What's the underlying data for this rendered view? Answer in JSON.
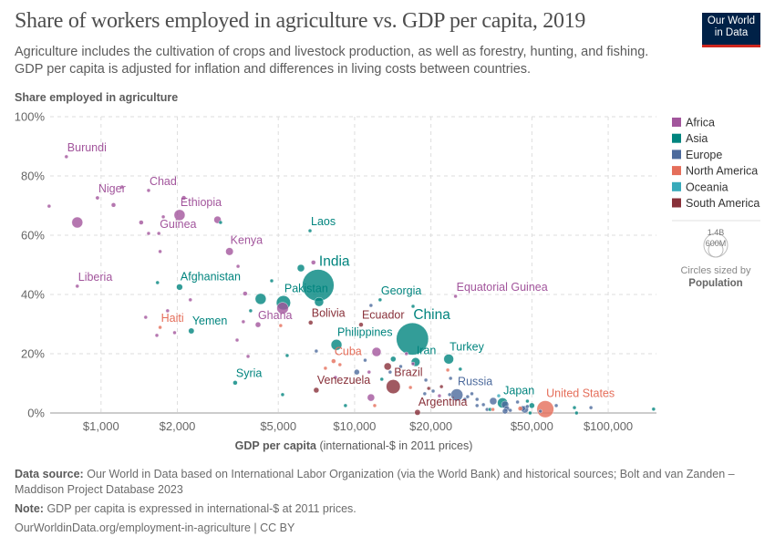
{
  "header": {
    "title": "Share of workers employed in agriculture vs. GDP per capita, 2019",
    "subtitle_line1": "Agriculture includes the cultivation of crops and livestock production, as well as forestry, hunting, and fishing.",
    "subtitle_line2": "GDP per capita is adjusted for inflation and differences in living costs between countries.",
    "logo_line1": "Our World",
    "logo_line2": "in Data"
  },
  "legend": {
    "size_big": "1.4B",
    "size_small": "600M",
    "sized_by_label": "Circles sized by",
    "sized_by_value": "Population"
  },
  "footer": {
    "source_label": "Data source:",
    "source_text": "Our World in Data based on International Labor Organization (via the World Bank) and historical sources; Bolt and van Zanden – Maddison Project Database 2023",
    "note_label": "Note:",
    "note_text": "GDP per capita is expressed in international-$ at 2011 prices.",
    "url": "OurWorldinData.org/employment-in-agriculture | CC BY"
  },
  "chart_data": {
    "type": "scatter",
    "title": "Share of workers employed in agriculture vs. GDP per capita, 2019",
    "xlabel_bold": "GDP per capita",
    "xlabel_rest": " (international-$ in 2011 prices)",
    "ylabel": "Share employed in agriculture",
    "x_scale": "log",
    "xlim": [
      630,
      155000
    ],
    "ylim": [
      0,
      100
    ],
    "x_ticks": [
      1000,
      2000,
      5000,
      10000,
      20000,
      50000,
      100000
    ],
    "x_tick_labels": [
      "$1,000",
      "$2,000",
      "$5,000",
      "$10,000",
      "$20,000",
      "$50,000",
      "$100,000"
    ],
    "y_ticks": [
      0,
      20,
      40,
      60,
      80,
      100
    ],
    "y_tick_labels": [
      "0%",
      "20%",
      "40%",
      "60%",
      "80%",
      "100%"
    ],
    "grid": true,
    "legend_placement": "right",
    "size_variable": "Population",
    "regions": [
      {
        "name": "Africa",
        "color": "#a2559c"
      },
      {
        "name": "Asia",
        "color": "#00847e"
      },
      {
        "name": "Europe",
        "color": "#4c6a9c"
      },
      {
        "name": "North America",
        "color": "#e56e5a"
      },
      {
        "name": "Oceania",
        "color": "#38aaba"
      },
      {
        "name": "South America",
        "color": "#883039"
      }
    ],
    "points": [
      {
        "label": "Burundi",
        "gdp": 730,
        "share": 86.5,
        "region": "Africa",
        "pop": 1.3
      },
      {
        "label": "Niger",
        "gdp": 968,
        "share": 72.6,
        "region": "Africa",
        "pop": 2
      },
      {
        "label": "Chad",
        "gdp": 1540,
        "share": 75.1,
        "region": "Africa",
        "pop": 1.3
      },
      {
        "label": "Ethiopia",
        "gdp": 2040,
        "share": 66.8,
        "region": "Africa",
        "pop": 112
      },
      {
        "label": "Guinea",
        "gdp": 1690,
        "share": 60.6,
        "region": "Africa",
        "pop": 1.3
      },
      {
        "label": "Kenya",
        "gdp": 3210,
        "share": 54.5,
        "region": "Africa",
        "pop": 40
      },
      {
        "label": "Laos",
        "gdp": 6670,
        "share": 61.5,
        "region": "Asia",
        "pop": 1.3
      },
      {
        "label": "India",
        "gdp": 7180,
        "share": 43.1,
        "region": "Asia",
        "pop": 1380
      },
      {
        "label": "Pakistan",
        "gdp": 5240,
        "share": 37.2,
        "region": "Asia",
        "pop": 217
      },
      {
        "label": "Afghanistan",
        "gdp": 2040,
        "share": 42.5,
        "region": "Asia",
        "pop": 20
      },
      {
        "label": "Liberia",
        "gdp": 806,
        "share": 42.8,
        "region": "Africa",
        "pop": 1.3
      },
      {
        "label": "Ghana",
        "gdp": 5200,
        "share": 35.4,
        "region": "Africa",
        "pop": 130
      },
      {
        "label": "Haiti",
        "gdp": 1710,
        "share": 28.9,
        "region": "North America",
        "pop": 1.3
      },
      {
        "label": "Yemen",
        "gdp": 2270,
        "share": 27.7,
        "region": "Asia",
        "pop": 15
      },
      {
        "label": "Syria",
        "gdp": 3380,
        "share": 10.2,
        "region": "Asia",
        "pop": 5
      },
      {
        "label": "Venezuela",
        "gdp": 7060,
        "share": 7.7,
        "region": "South America",
        "pop": 12
      },
      {
        "label": "Cuba",
        "gdp": 8260,
        "share": 17.5,
        "region": "North America",
        "pop": 5
      },
      {
        "label": "Philippines",
        "gdp": 8480,
        "share": 23.0,
        "region": "Asia",
        "pop": 108
      },
      {
        "label": "Bolivia",
        "gdp": 6710,
        "share": 30.5,
        "region": "South America",
        "pop": 5
      },
      {
        "label": "Ecuador",
        "gdp": 10600,
        "share": 29.8,
        "region": "South America",
        "pop": 5
      },
      {
        "label": "China",
        "gdp": 16900,
        "share": 25.0,
        "region": "Asia",
        "pop": 1420
      },
      {
        "label": "Iran",
        "gdp": 17400,
        "share": 17.2,
        "region": "Asia",
        "pop": 60
      },
      {
        "label": "Turkey",
        "gdp": 23500,
        "share": 18.2,
        "region": "Asia",
        "pop": 83
      },
      {
        "label": "Georgia",
        "gdp": 12600,
        "share": 38.2,
        "region": "Asia",
        "pop": 1.3
      },
      {
        "label": "Equatorial Guinea",
        "gdp": 25000,
        "share": 39.4,
        "region": "Africa",
        "pop": 1.3
      },
      {
        "label": "Brazil",
        "gdp": 14200,
        "share": 8.9,
        "region": "South America",
        "pop": 211
      },
      {
        "label": "Russia",
        "gdp": 25300,
        "share": 6.1,
        "region": "Europe",
        "pop": 145
      },
      {
        "label": "Argentina",
        "gdp": 17700,
        "share": 0.2,
        "region": "South America",
        "pop": 15
      },
      {
        "label": "Japan",
        "gdp": 38300,
        "share": 3.4,
        "region": "Asia",
        "pop": 90
      },
      {
        "label": "United States",
        "gdp": 56500,
        "share": 1.3,
        "region": "North America",
        "pop": 330
      },
      {
        "gdp": 624,
        "share": 69.8,
        "region": "Africa",
        "pop": 1.3
      },
      {
        "gdp": 806,
        "share": 64.3,
        "region": "Africa",
        "pop": 110
      },
      {
        "gdp": 1210,
        "share": 76.3,
        "region": "Africa",
        "pop": 1.3
      },
      {
        "gdp": 1120,
        "share": 70.2,
        "region": "Africa",
        "pop": 5
      },
      {
        "gdp": 1440,
        "share": 64.3,
        "region": "Africa",
        "pop": 5
      },
      {
        "gdp": 1760,
        "share": 66.2,
        "region": "Africa",
        "pop": 1.3
      },
      {
        "gdp": 1540,
        "share": 60.6,
        "region": "Africa",
        "pop": 1.3
      },
      {
        "gdp": 2120,
        "share": 72.6,
        "region": "Africa",
        "pop": 5
      },
      {
        "gdp": 2880,
        "share": 65.2,
        "region": "Africa",
        "pop": 34
      },
      {
        "gdp": 2960,
        "share": 64.3,
        "region": "Asia",
        "pop": 1.3
      },
      {
        "gdp": 1710,
        "share": 54.5,
        "region": "Africa",
        "pop": 1.3
      },
      {
        "gdp": 3470,
        "share": 49.5,
        "region": "Africa",
        "pop": 1.3
      },
      {
        "gdp": 1670,
        "share": 44.0,
        "region": "Asia",
        "pop": 1.3
      },
      {
        "gdp": 2250,
        "share": 38.2,
        "region": "Africa",
        "pop": 1.3
      },
      {
        "gdp": 3700,
        "share": 40.3,
        "region": "Africa",
        "pop": 5
      },
      {
        "gdp": 4710,
        "share": 44.6,
        "region": "Asia",
        "pop": 1.3
      },
      {
        "gdp": 6140,
        "share": 48.9,
        "region": "Asia",
        "pop": 34
      },
      {
        "gdp": 6880,
        "share": 50.8,
        "region": "Africa",
        "pop": 5
      },
      {
        "gdp": 4260,
        "share": 38.5,
        "region": "Asia",
        "pop": 110
      },
      {
        "gdp": 7240,
        "share": 37.5,
        "region": "Asia",
        "pop": 67
      },
      {
        "gdp": 3890,
        "share": 34.5,
        "region": "Asia",
        "pop": 1.3
      },
      {
        "gdp": 11600,
        "share": 36.3,
        "region": "Europe",
        "pop": 1.3
      },
      {
        "gdp": 1830,
        "share": 34.5,
        "region": "Africa",
        "pop": 1.3
      },
      {
        "gdp": 1500,
        "share": 32.3,
        "region": "Africa",
        "pop": 1.3
      },
      {
        "gdp": 1660,
        "share": 26.2,
        "region": "Africa",
        "pop": 1.3
      },
      {
        "gdp": 1950,
        "share": 27.1,
        "region": "Africa",
        "pop": 1.3
      },
      {
        "gdp": 3640,
        "share": 30.8,
        "region": "Africa",
        "pop": 1.3
      },
      {
        "gdp": 4160,
        "share": 29.8,
        "region": "Africa",
        "pop": 12
      },
      {
        "gdp": 5110,
        "share": 29.5,
        "region": "North America",
        "pop": 1.3
      },
      {
        "gdp": 3440,
        "share": 24.6,
        "region": "Africa",
        "pop": 1.3
      },
      {
        "gdp": 3800,
        "share": 19.1,
        "region": "Africa",
        "pop": 1.3
      },
      {
        "gdp": 5420,
        "share": 19.4,
        "region": "Asia",
        "pop": 1.3
      },
      {
        "gdp": 5200,
        "share": 6.2,
        "region": "Asia",
        "pop": 1.3
      },
      {
        "gdp": 7060,
        "share": 20.9,
        "region": "Europe",
        "pop": 1.3
      },
      {
        "gdp": 7670,
        "share": 15.1,
        "region": "North America",
        "pop": 1.3
      },
      {
        "gdp": 8750,
        "share": 16.3,
        "region": "North America",
        "pop": 1.3
      },
      {
        "gdp": 8400,
        "share": 12.0,
        "region": "Africa",
        "pop": 1.3
      },
      {
        "gdp": 9200,
        "share": 2.5,
        "region": "Asia",
        "pop": 1.3
      },
      {
        "gdp": 10200,
        "share": 13.8,
        "region": "Europe",
        "pop": 12
      },
      {
        "gdp": 11000,
        "share": 17.8,
        "region": "Europe",
        "pop": 1.3
      },
      {
        "gdp": 12200,
        "share": 20.6,
        "region": "Africa",
        "pop": 67
      },
      {
        "gdp": 11600,
        "share": 5.2,
        "region": "Africa",
        "pop": 34
      },
      {
        "gdp": 12000,
        "share": 2.5,
        "region": "North America",
        "pop": 1.3
      },
      {
        "gdp": 11400,
        "share": 13.8,
        "region": "Africa",
        "pop": 1.3
      },
      {
        "gdp": 12800,
        "share": 11.4,
        "region": "Asia",
        "pop": 1.3
      },
      {
        "gdp": 13500,
        "share": 15.7,
        "region": "South America",
        "pop": 34
      },
      {
        "gdp": 14200,
        "share": 18.2,
        "region": "Asia",
        "pop": 12
      },
      {
        "gdp": 15200,
        "share": 15.7,
        "region": "Europe",
        "pop": 1.3
      },
      {
        "gdp": 13800,
        "share": 13.8,
        "region": "Europe",
        "pop": 1.3
      },
      {
        "gdp": 19100,
        "share": 11.1,
        "region": "Europe",
        "pop": 1.3
      },
      {
        "gdp": 16600,
        "share": 8.6,
        "region": "North America",
        "pop": 1.3
      },
      {
        "gdp": 17000,
        "share": 16.6,
        "region": "Africa",
        "pop": 1.3
      },
      {
        "gdp": 16000,
        "share": 20.0,
        "region": "Africa",
        "pop": 1.3
      },
      {
        "gdp": 17000,
        "share": 36.0,
        "region": "Asia",
        "pop": 1.3
      },
      {
        "gdp": 23300,
        "share": 14.5,
        "region": "North America",
        "pop": 1.3
      },
      {
        "gdp": 26100,
        "share": 14.8,
        "region": "Asia",
        "pop": 1.3
      },
      {
        "gdp": 23900,
        "share": 11.7,
        "region": "Europe",
        "pop": 1.3
      },
      {
        "gdp": 22000,
        "share": 8.9,
        "region": "South America",
        "pop": 1.3
      },
      {
        "gdp": 19600,
        "share": 8.3,
        "region": "South America",
        "pop": 1.3
      },
      {
        "gdp": 18900,
        "share": 6.5,
        "region": "Europe",
        "pop": 1.3
      },
      {
        "gdp": 20400,
        "share": 7.4,
        "region": "Europe",
        "pop": 1.3
      },
      {
        "gdp": 21600,
        "share": 5.8,
        "region": "Africa",
        "pop": 1.3
      },
      {
        "gdp": 23700,
        "share": 6.2,
        "region": "Europe",
        "pop": 1.3
      },
      {
        "gdp": 27200,
        "share": 4.6,
        "region": "Europe",
        "pop": 1.3
      },
      {
        "gdp": 27900,
        "share": 5.5,
        "region": "Europe",
        "pop": 1.3
      },
      {
        "gdp": 29000,
        "share": 6.5,
        "region": "Europe",
        "pop": 1.3
      },
      {
        "gdp": 30400,
        "share": 4.6,
        "region": "Europe",
        "pop": 1.3
      },
      {
        "gdp": 30400,
        "share": 2.5,
        "region": "Europe",
        "pop": 1.3
      },
      {
        "gdp": 32200,
        "share": 2.8,
        "region": "Europe",
        "pop": 1.3
      },
      {
        "gdp": 33300,
        "share": 1.2,
        "region": "Europe",
        "pop": 1.3
      },
      {
        "gdp": 34200,
        "share": 1.2,
        "region": "Asia",
        "pop": 1.3
      },
      {
        "gdp": 35100,
        "share": 1.2,
        "region": "North America",
        "pop": 1.3
      },
      {
        "gdp": 35200,
        "share": 4.0,
        "region": "Europe",
        "pop": 34
      },
      {
        "gdp": 37000,
        "share": 5.8,
        "region": "Oceania",
        "pop": 1.3
      },
      {
        "gdp": 39200,
        "share": 2.8,
        "region": "Europe",
        "pop": 34
      },
      {
        "gdp": 39800,
        "share": 1.5,
        "region": "Europe",
        "pop": 12
      },
      {
        "gdp": 39200,
        "share": 0.6,
        "region": "Europe",
        "pop": 12
      },
      {
        "gdp": 41100,
        "share": 0.9,
        "region": "Europe",
        "pop": 1.3
      },
      {
        "gdp": 43900,
        "share": 3.7,
        "region": "Europe",
        "pop": 1.3
      },
      {
        "gdp": 45000,
        "share": 1.5,
        "region": "North America",
        "pop": 5
      },
      {
        "gdp": 46000,
        "share": 1.5,
        "region": "Europe",
        "pop": 12
      },
      {
        "gdp": 46900,
        "share": 1.2,
        "region": "Europe",
        "pop": 34
      },
      {
        "gdp": 48000,
        "share": 4.0,
        "region": "Asia",
        "pop": 1.3
      },
      {
        "gdp": 48000,
        "share": 2.2,
        "region": "Europe",
        "pop": 1.3
      },
      {
        "gdp": 49200,
        "share": 0.0,
        "region": "Asia",
        "pop": 1.3
      },
      {
        "gdp": 50000,
        "share": 2.5,
        "region": "Asia",
        "pop": 12
      },
      {
        "gdp": 54000,
        "share": 0.6,
        "region": "Europe",
        "pop": 1.3
      },
      {
        "gdp": 62400,
        "share": 2.5,
        "region": "Europe",
        "pop": 1.3
      },
      {
        "gdp": 73600,
        "share": 1.8,
        "region": "Asia",
        "pop": 1.3
      },
      {
        "gdp": 75000,
        "share": 0.0,
        "region": "Asia",
        "pop": 1.3
      },
      {
        "gdp": 85500,
        "share": 1.8,
        "region": "Europe",
        "pop": 1.3
      },
      {
        "gdp": 151000,
        "share": 1.3,
        "region": "Asia",
        "pop": 1.3
      }
    ]
  }
}
